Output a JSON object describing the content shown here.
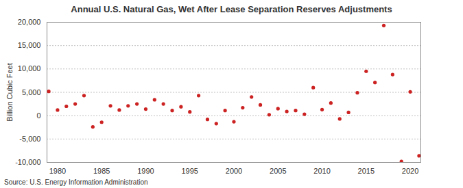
{
  "chart_data": {
    "type": "scatter",
    "title": "Annual U.S. Natural Gas, Wet After Lease Separation Reserves Adjustments",
    "y_label": "Billion Cubic Feet",
    "source": "Source: U.S. Energy Information Administration",
    "x": [
      1979,
      1980,
      1981,
      1982,
      1983,
      1984,
      1985,
      1986,
      1987,
      1988,
      1989,
      1990,
      1991,
      1992,
      1993,
      1994,
      1995,
      1996,
      1997,
      1998,
      1999,
      2000,
      2001,
      2002,
      2003,
      2004,
      2005,
      2006,
      2007,
      2008,
      2009,
      2010,
      2011,
      2012,
      2013,
      2014,
      2015,
      2016,
      2017,
      2018,
      2019,
      2020,
      2021
    ],
    "values": [
      5200,
      1200,
      2000,
      2500,
      4300,
      -2400,
      -1400,
      2100,
      1200,
      2100,
      2500,
      1400,
      3400,
      2500,
      1100,
      1900,
      800,
      4300,
      -800,
      -1700,
      1100,
      -1300,
      1700,
      4000,
      2300,
      200,
      1500,
      900,
      1100,
      300,
      6000,
      1300,
      2700,
      -700,
      700,
      4900,
      9500,
      7100,
      19300,
      8800,
      -9800,
      5100,
      -8600
    ],
    "color": "#cc2222",
    "marker": "circle",
    "xlim": [
      1978.8,
      2021.2
    ],
    "xticks": [
      1980,
      1985,
      1990,
      1995,
      2000,
      2005,
      2010,
      2015,
      2020
    ],
    "ylim": [
      -10000,
      20000
    ],
    "yticks": [
      {
        "value": -10000,
        "label": "-10,000"
      },
      {
        "value": -5000,
        "label": "-5,000"
      },
      0,
      {
        "value": 5000,
        "label": "5,000"
      },
      {
        "value": 10000,
        "label": "10,000"
      },
      {
        "value": 15000,
        "label": "15,000"
      },
      {
        "value": 20000,
        "label": "20,000"
      }
    ],
    "grid": true
  }
}
